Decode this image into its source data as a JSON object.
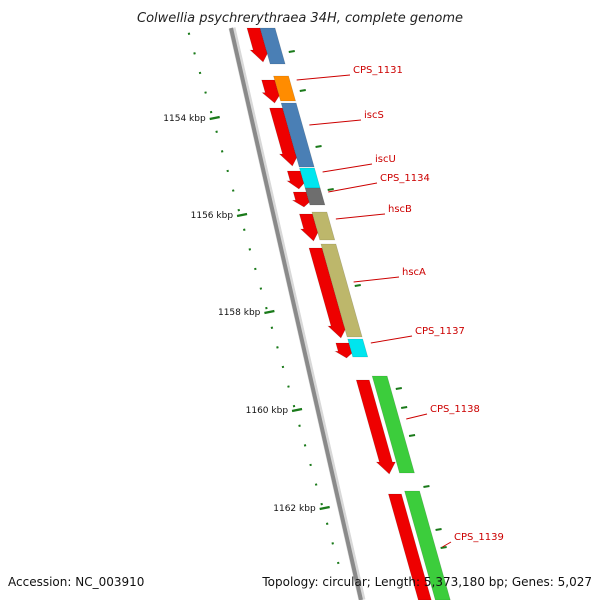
{
  "title": "Colwellia psychrerythraea 34H, complete genome",
  "accession": "Accession: NC_003910",
  "topology": "Topology: circular; Length: 5,373,180 bp; Genes: 5,027",
  "kbp_marks": [
    {
      "label": "1154 kbp"
    },
    {
      "label": "1156 kbp"
    },
    {
      "label": "1158 kbp"
    },
    {
      "label": "1160 kbp"
    },
    {
      "label": "1162 kbp"
    }
  ],
  "colors": {
    "backbone": "#8a8a8a",
    "strand": "#ee0000",
    "ruler": "#1a7a1a",
    "label": "#cc0000",
    "leader": "#cc0000",
    "cog_blue": "#4a7fb5",
    "cog_orange": "#ff8c00",
    "cog_cyan": "#00e5ee",
    "cog_gray": "#6e6e6e",
    "cog_khaki": "#bdb76b",
    "cog_green": "#3ccd3c"
  },
  "genes": [
    {
      "name": "",
      "cog": "cog_blue"
    },
    {
      "name": "CPS_1131",
      "cog": "cog_orange"
    },
    {
      "name": "iscS",
      "cog": "cog_blue"
    },
    {
      "name": "iscU",
      "cog": "cog_cyan"
    },
    {
      "name": "CPS_1134",
      "cog": "cog_gray"
    },
    {
      "name": "hscB",
      "cog": "cog_khaki"
    },
    {
      "name": "hscA",
      "cog": "cog_khaki"
    },
    {
      "name": "CPS_1137",
      "cog": "cog_cyan"
    },
    {
      "name": "CPS_1138",
      "cog": "cog_green"
    },
    {
      "name": "CPS_1139",
      "cog": "cog_green"
    }
  ]
}
